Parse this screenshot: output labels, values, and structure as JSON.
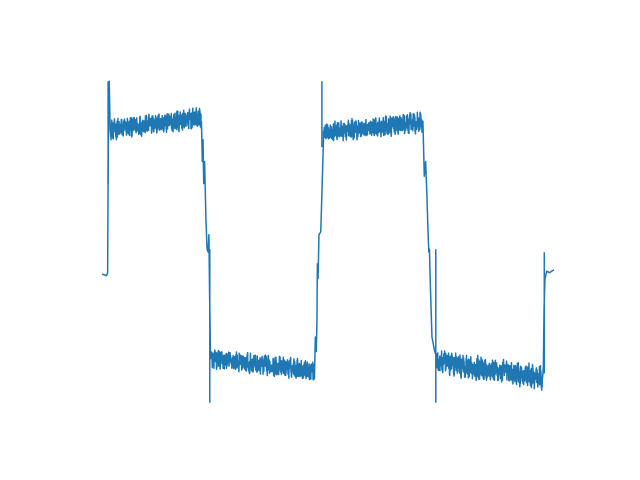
{
  "chart_data": {
    "type": "line",
    "title": "",
    "xlabel": "",
    "ylabel": "",
    "axes_visible": false,
    "grid": false,
    "legend": "none",
    "series": [
      {
        "color": "#1f77b4",
        "linewidth": 1.5,
        "noisy_segments": [
          {
            "x_start": 0.02,
            "x_end": 0.22,
            "y_start": 0.92,
            "y_end": 1.0,
            "noise": 0.06
          },
          {
            "x_start": 0.24,
            "x_end": 0.47,
            "y_start": -0.65,
            "y_end": -0.73,
            "noise": 0.06
          },
          {
            "x_start": 0.49,
            "x_end": 0.71,
            "y_start": 0.9,
            "y_end": 0.97,
            "noise": 0.06
          },
          {
            "x_start": 0.74,
            "x_end": 0.975,
            "y_start": -0.67,
            "y_end": -0.78,
            "noise": 0.07
          }
        ],
        "x": [
          0.0,
          0.01,
          0.0125,
          0.0135,
          0.0145,
          0.016,
          0.018,
          0.02,
          0.22,
          0.222,
          0.2235,
          0.225,
          0.227,
          0.2285,
          0.23,
          0.2325,
          0.235,
          0.2365,
          0.238,
          0.24,
          0.47,
          0.472,
          0.474,
          0.4755,
          0.4765,
          0.478,
          0.48,
          0.484,
          0.49,
          0.71,
          0.713,
          0.716,
          0.7185,
          0.7215,
          0.7232,
          0.7245,
          0.726,
          0.73,
          0.736,
          0.74,
          0.975,
          0.9765,
          0.978,
          0.98,
          0.984,
          0.99,
          1.0
        ],
        "y": [
          -0.07,
          -0.08,
          -0.06,
          0.6,
          1.0,
          1.25,
          0.92,
          0.85,
          0.89,
          0.7,
          0.85,
          0.55,
          0.7,
          0.5,
          0.3,
          0.1,
          0.08,
          0.2,
          -0.2,
          -0.62,
          -0.7,
          -0.5,
          -0.6,
          -0.4,
          0.0,
          -0.1,
          0.2,
          0.22,
          0.85,
          0.86,
          0.6,
          0.7,
          0.5,
          0.2,
          0.08,
          0.1,
          -0.1,
          -0.5,
          -0.6,
          -0.63,
          -0.78,
          -0.7,
          -0.3,
          -0.1,
          -0.05,
          -0.06,
          -0.04
        ],
        "spikes": [
          {
            "x": 0.0135,
            "y_top": 1.25,
            "y_bottom": 0.55
          },
          {
            "x": 0.2385,
            "y_top": 0.1,
            "y_bottom": -0.95
          },
          {
            "x": 0.4865,
            "y_top": 1.25,
            "y_bottom": 0.8
          },
          {
            "x": 0.7385,
            "y_top": 0.1,
            "y_bottom": -0.95
          },
          {
            "x": 0.9785,
            "y_top": 0.08,
            "y_bottom": -0.75
          }
        ]
      }
    ],
    "xlim": [
      0,
      1
    ],
    "ylim": [
      -1.0,
      1.3
    ]
  }
}
